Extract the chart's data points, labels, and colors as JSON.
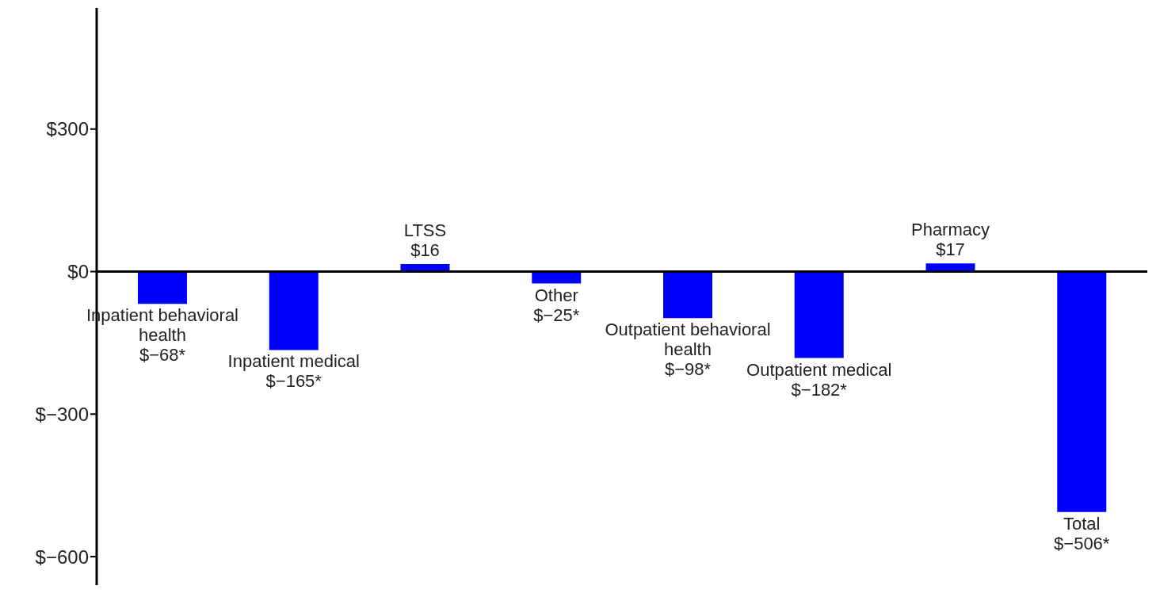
{
  "chart_data": {
    "type": "bar",
    "categories": [
      "Inpatient behavioral health",
      "Inpatient medical",
      "LTSS",
      "Other",
      "Outpatient behavioral health",
      "Outpatient medical",
      "Pharmacy",
      "Total"
    ],
    "values": [
      -68,
      -165,
      16,
      -25,
      -98,
      -182,
      17,
      -506
    ],
    "value_labels": [
      "$−68*",
      "$−165*",
      "$16",
      "$−25*",
      "$−98*",
      "$−182*",
      "$17",
      "$−506*"
    ],
    "color": "#0000ff",
    "ylim": [
      -660,
      555
    ],
    "yticks": [
      {
        "value": -600,
        "label": "$−600"
      },
      {
        "value": -300,
        "label": "$−300"
      },
      {
        "value": 0,
        "label": "$0"
      },
      {
        "value": 300,
        "label": "$300"
      }
    ],
    "tick_labels": "y",
    "grid": false,
    "legend": false
  }
}
